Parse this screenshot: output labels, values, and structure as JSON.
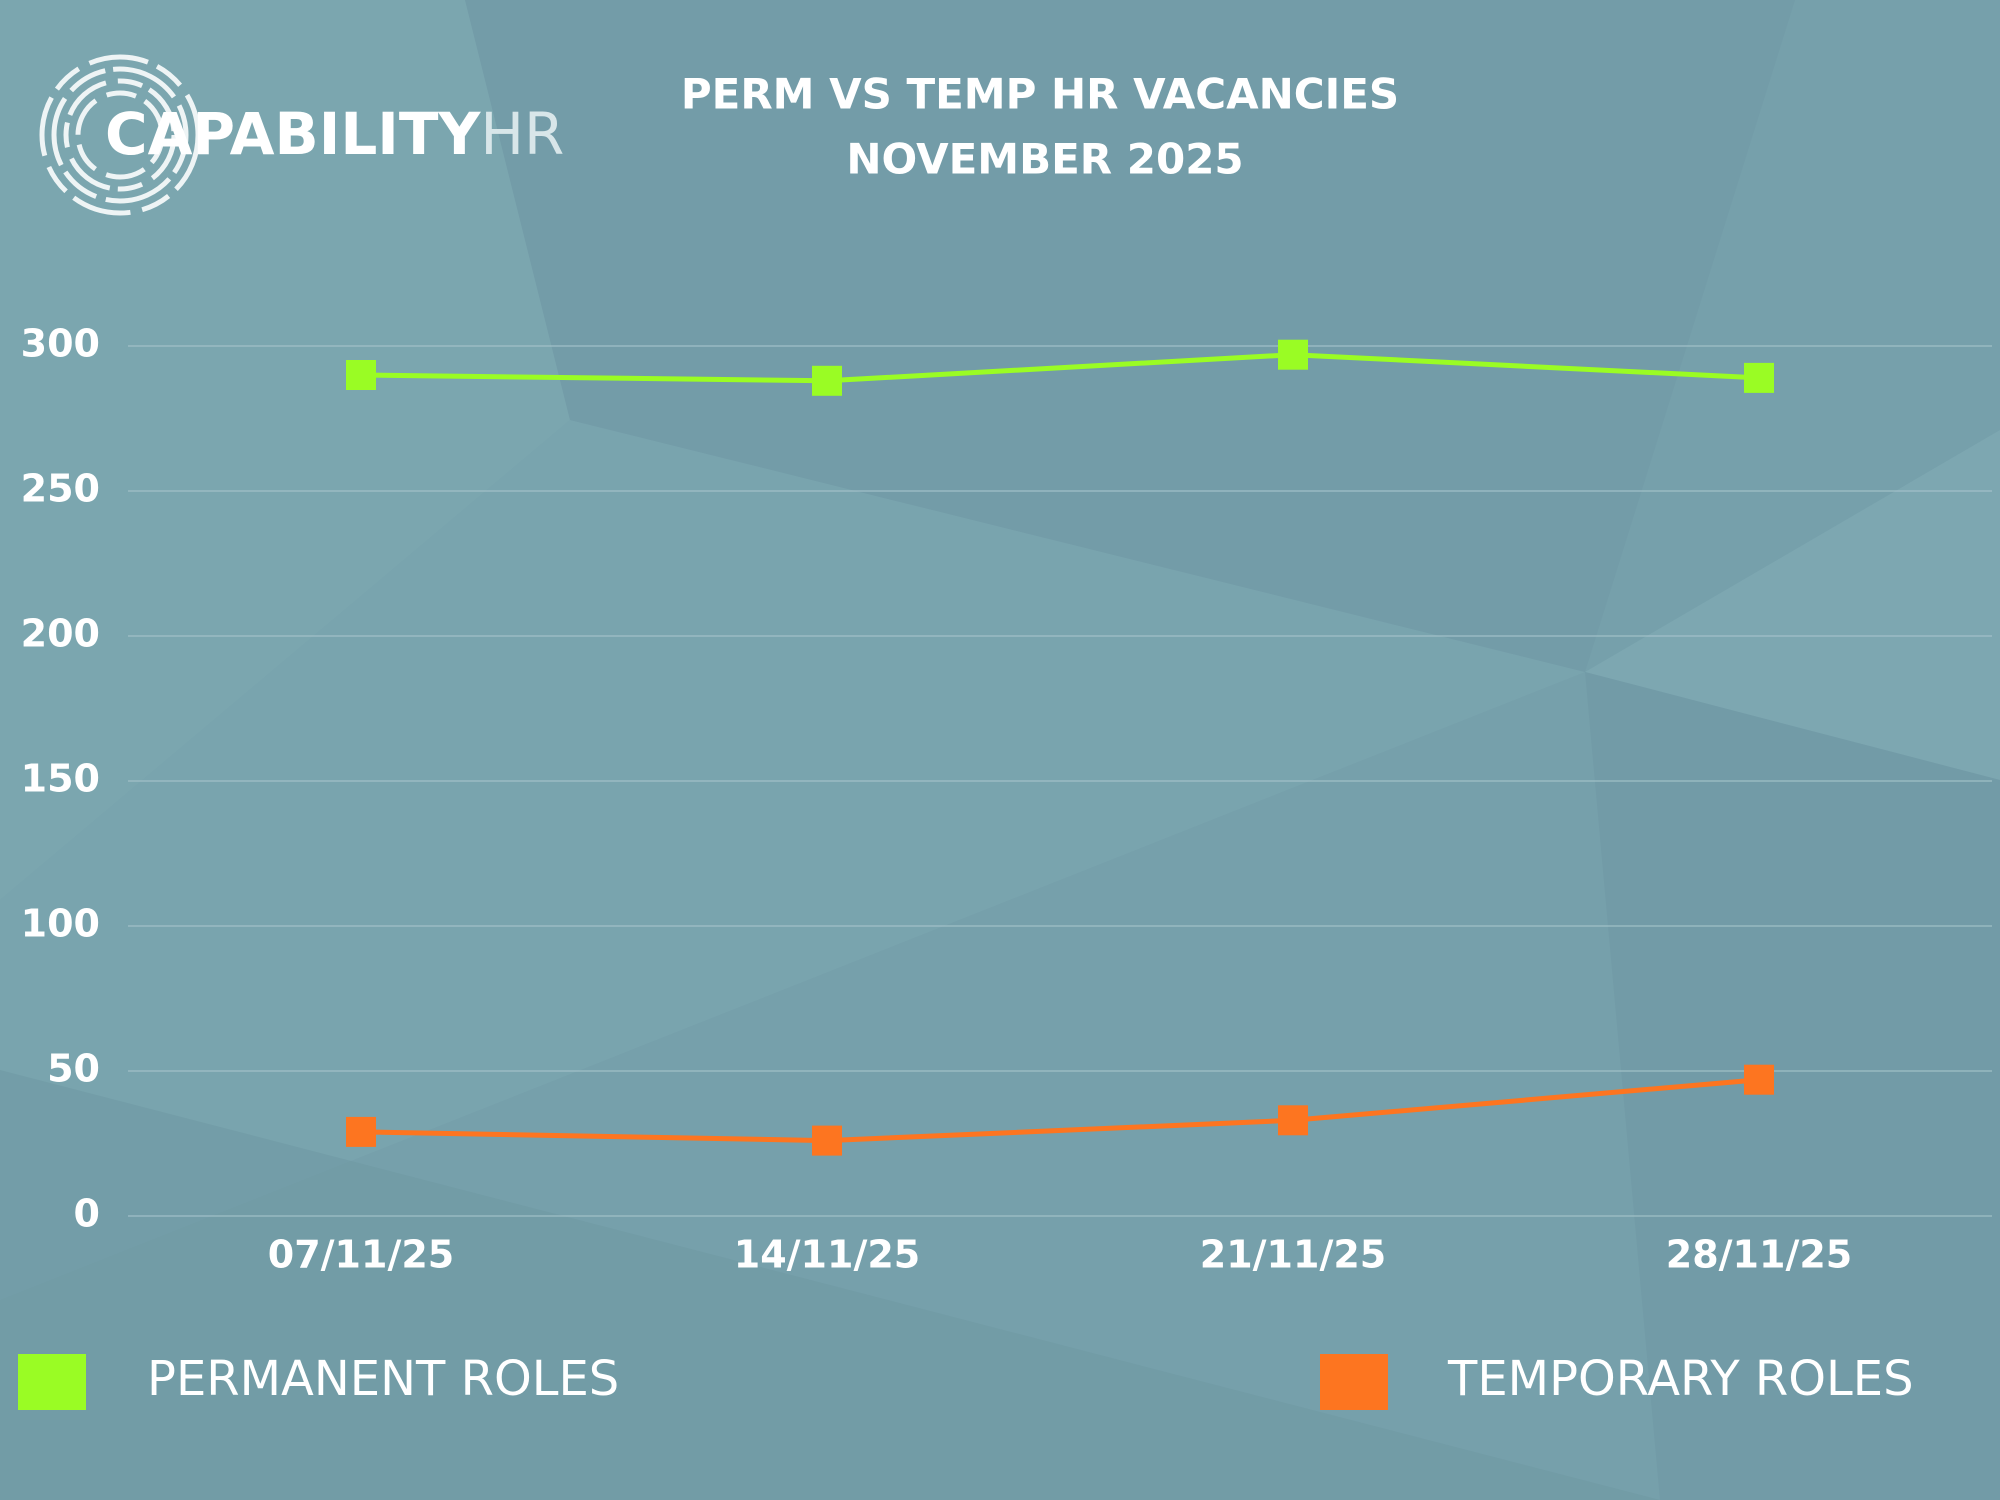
{
  "logo": {
    "name": "CAPABILITY",
    "suffix": "HR"
  },
  "chart_data": {
    "type": "line",
    "title": "PERM VS TEMP HR VACANCIES",
    "subtitle": "NOVEMBER 2025",
    "categories": [
      "07/11/25",
      "14/11/25",
      "21/11/25",
      "28/11/25"
    ],
    "series": [
      {
        "name": "PERMANENT ROLES",
        "color": "#9afc24",
        "values": [
          290,
          288,
          297,
          289
        ]
      },
      {
        "name": "TEMPORARY ROLES",
        "color": "#fd7520",
        "values": [
          29,
          26,
          33,
          47
        ]
      }
    ],
    "ylim": [
      0,
      300
    ],
    "yticks": [
      0,
      50,
      100,
      150,
      200,
      250,
      300
    ],
    "grid": true
  }
}
